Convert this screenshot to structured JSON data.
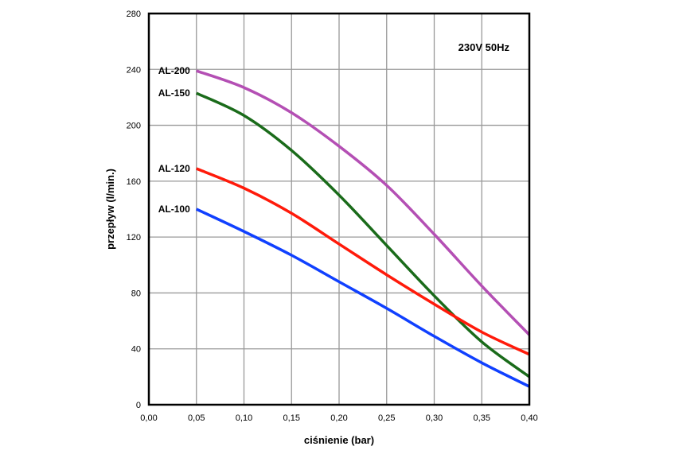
{
  "chart_data": {
    "type": "line",
    "title": "",
    "annotation": "230V 50Hz",
    "xlabel": "ciśnienie (bar)",
    "ylabel": "przepływ (l/min.)",
    "xlim": [
      0,
      0.4
    ],
    "ylim": [
      0,
      280
    ],
    "grid": true,
    "x_ticks": [
      "0,00",
      "0,05",
      "0,10",
      "0,15",
      "0,20",
      "0,25",
      "0,30",
      "0,35",
      "0,40"
    ],
    "y_ticks": [
      "0",
      "40",
      "80",
      "120",
      "160",
      "200",
      "240",
      "280"
    ],
    "x": [
      0.05,
      0.1,
      0.15,
      0.2,
      0.25,
      0.3,
      0.35,
      0.4
    ],
    "series": [
      {
        "name": "AL-200",
        "color": "#b44fb4",
        "values": [
          239,
          227,
          209,
          185,
          157,
          122,
          85,
          50
        ]
      },
      {
        "name": "AL-150",
        "color": "#1a6b1a",
        "values": [
          223,
          207,
          182,
          150,
          114,
          78,
          45,
          20
        ]
      },
      {
        "name": "AL-120",
        "color": "#ff1a0a",
        "values": [
          169,
          155,
          137,
          115,
          93,
          72,
          52,
          36
        ]
      },
      {
        "name": "AL-100",
        "color": "#1040ff",
        "values": [
          140,
          124,
          107,
          88,
          69,
          49,
          30,
          13
        ]
      }
    ]
  }
}
